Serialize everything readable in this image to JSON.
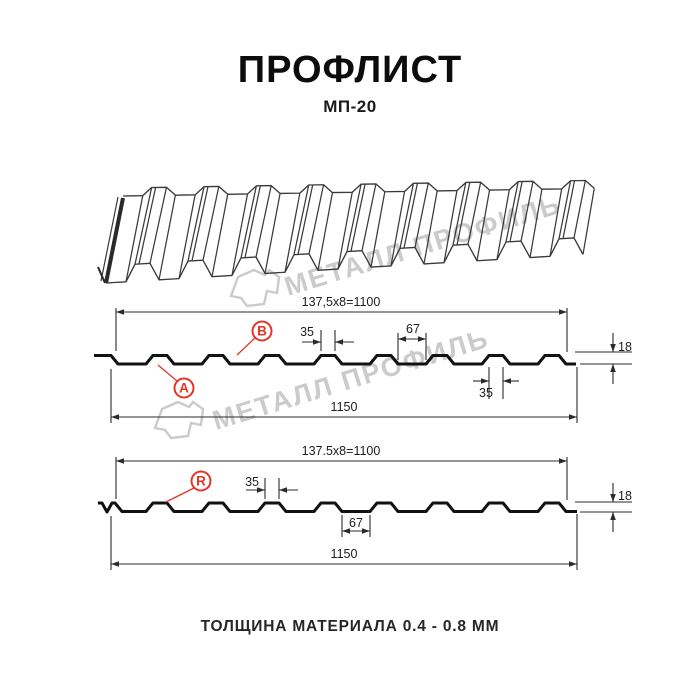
{
  "header": {
    "title": "ПРОФЛИСТ",
    "subtitle": "МП-20"
  },
  "footer": {
    "text": "ТОЛЩИНА МАТЕРИАЛА 0.4 - 0.8 ММ"
  },
  "watermark": {
    "brand": "МЕТАЛЛ ПРОФИЛЬ"
  },
  "colors": {
    "accent_red": "#e53528",
    "line": "#2b2b2b",
    "profile_line": "#111111",
    "watermark_gray": "#cbcbcb"
  },
  "section1": {
    "pitch": "137,5x8=1100",
    "rib_top": "35",
    "valley": "67",
    "height": "18",
    "rib_bottom": "35",
    "total_width": "1150",
    "label_a": "A",
    "label_b": "B"
  },
  "section2": {
    "pitch": "137.5x8=1100",
    "rib_top": "35",
    "valley": "67",
    "height": "18",
    "total_width": "1150",
    "label_r": "R"
  }
}
